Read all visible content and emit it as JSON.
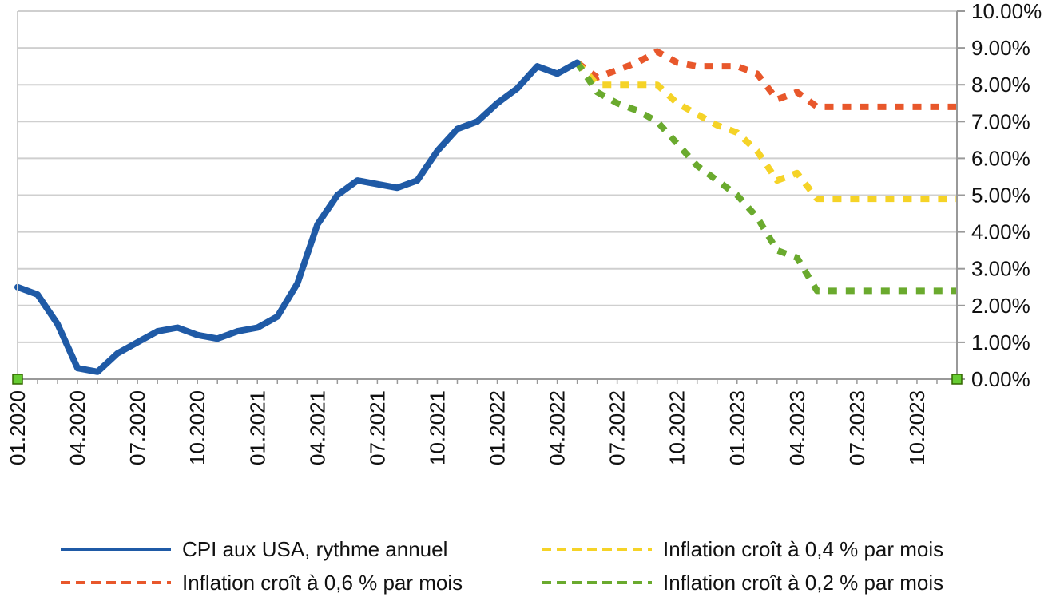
{
  "chart_data": {
    "type": "line",
    "title": "",
    "xlabel": "",
    "ylabel": "",
    "y_axis_side": "right",
    "ylim": [
      0,
      10
    ],
    "x_months_range": [
      "2020-01",
      "2023-12"
    ],
    "grid": true,
    "legend_placement": "bottom",
    "x_tick_labels": [
      "01.2020",
      "04.2020",
      "07.2020",
      "10.2020",
      "01.2021",
      "04.2021",
      "07.2021",
      "10.2021",
      "01.2022",
      "04.2022",
      "07.2022",
      "10.2022",
      "01.2023",
      "04.2023",
      "07.2023",
      "10.2023"
    ],
    "x_tick_months": [
      "2020-01",
      "2020-04",
      "2020-07",
      "2020-10",
      "2021-01",
      "2021-04",
      "2021-07",
      "2021-10",
      "2022-01",
      "2022-04",
      "2022-07",
      "2022-10",
      "2023-01",
      "2023-04",
      "2023-07",
      "2023-10"
    ],
    "y_tick_labels": [
      "0.00%",
      "1.00%",
      "2.00%",
      "3.00%",
      "4.00%",
      "5.00%",
      "6.00%",
      "7.00%",
      "8.00%",
      "9.00%",
      "10.00%"
    ],
    "y_tick_values": [
      0,
      1,
      2,
      3,
      4,
      5,
      6,
      7,
      8,
      9,
      10
    ],
    "series": [
      {
        "name": "CPI aux USA, rythme annuel",
        "color": "#1f5aa6",
        "style": "solid",
        "x": [
          "2020-01",
          "2020-02",
          "2020-03",
          "2020-04",
          "2020-05",
          "2020-06",
          "2020-07",
          "2020-08",
          "2020-09",
          "2020-10",
          "2020-11",
          "2020-12",
          "2021-01",
          "2021-02",
          "2021-03",
          "2021-04",
          "2021-05",
          "2021-06",
          "2021-07",
          "2021-08",
          "2021-09",
          "2021-10",
          "2021-11",
          "2021-12",
          "2022-01",
          "2022-02",
          "2022-03",
          "2022-04",
          "2022-05"
        ],
        "values": [
          2.5,
          2.3,
          1.5,
          0.3,
          0.2,
          0.7,
          1.0,
          1.3,
          1.4,
          1.2,
          1.1,
          1.3,
          1.4,
          1.7,
          2.6,
          4.2,
          5.0,
          5.4,
          5.3,
          5.2,
          5.4,
          6.2,
          6.8,
          7.0,
          7.5,
          7.9,
          8.5,
          8.3,
          8.6
        ]
      },
      {
        "name": "Inflation croît à 0,6 % par mois",
        "color": "#e8572b",
        "style": "dotted",
        "x": [
          "2022-05",
          "2022-06",
          "2022-07",
          "2022-08",
          "2022-09",
          "2022-10",
          "2022-11",
          "2022-12",
          "2023-01",
          "2023-02",
          "2023-03",
          "2023-04",
          "2023-05",
          "2023-06",
          "2023-07",
          "2023-08",
          "2023-09",
          "2023-10",
          "2023-11",
          "2023-12"
        ],
        "values": [
          8.6,
          8.2,
          8.4,
          8.6,
          8.9,
          8.6,
          8.5,
          8.5,
          8.5,
          8.3,
          7.6,
          7.8,
          7.4,
          7.4,
          7.4,
          7.4,
          7.4,
          7.4,
          7.4,
          7.4
        ]
      },
      {
        "name": "Inflation croît à 0,4 % par mois",
        "color": "#f5d327",
        "style": "dotted",
        "x": [
          "2022-05",
          "2022-06",
          "2022-07",
          "2022-08",
          "2022-09",
          "2022-10",
          "2022-11",
          "2022-12",
          "2023-01",
          "2023-02",
          "2023-03",
          "2023-04",
          "2023-05",
          "2023-06",
          "2023-07",
          "2023-08",
          "2023-09",
          "2023-10",
          "2023-11",
          "2023-12"
        ],
        "values": [
          8.6,
          8.0,
          8.0,
          8.0,
          8.0,
          7.5,
          7.2,
          6.9,
          6.7,
          6.2,
          5.4,
          5.6,
          4.9,
          4.9,
          4.9,
          4.9,
          4.9,
          4.9,
          4.9,
          4.9
        ]
      },
      {
        "name": "Inflation croît à 0,2 % par mois",
        "color": "#6aaa2e",
        "style": "dotted",
        "x": [
          "2022-05",
          "2022-06",
          "2022-07",
          "2022-08",
          "2022-09",
          "2022-10",
          "2022-11",
          "2022-12",
          "2023-01",
          "2023-02",
          "2023-03",
          "2023-04",
          "2023-05",
          "2023-06",
          "2023-07",
          "2023-08",
          "2023-09",
          "2023-10",
          "2023-11",
          "2023-12"
        ],
        "values": [
          8.6,
          7.8,
          7.5,
          7.3,
          7.0,
          6.4,
          5.8,
          5.4,
          5.0,
          4.4,
          3.5,
          3.3,
          2.4,
          2.4,
          2.4,
          2.4,
          2.4,
          2.4,
          2.4,
          2.4
        ]
      }
    ]
  },
  "legend": {
    "items": [
      {
        "label": "CPI aux USA, rythme annuel",
        "series_index": 0
      },
      {
        "label": "Inflation croît à 0,4 % par mois",
        "series_index": 2
      },
      {
        "label": "Inflation croît à 0,6 % par mois",
        "series_index": 1
      },
      {
        "label": "Inflation croît à 0,2 % par mois",
        "series_index": 3
      }
    ]
  },
  "colors": {
    "grid": "#cfcfcf",
    "axis": "#999999",
    "handle_fill": "#66cc33",
    "handle_stroke": "#336600"
  }
}
